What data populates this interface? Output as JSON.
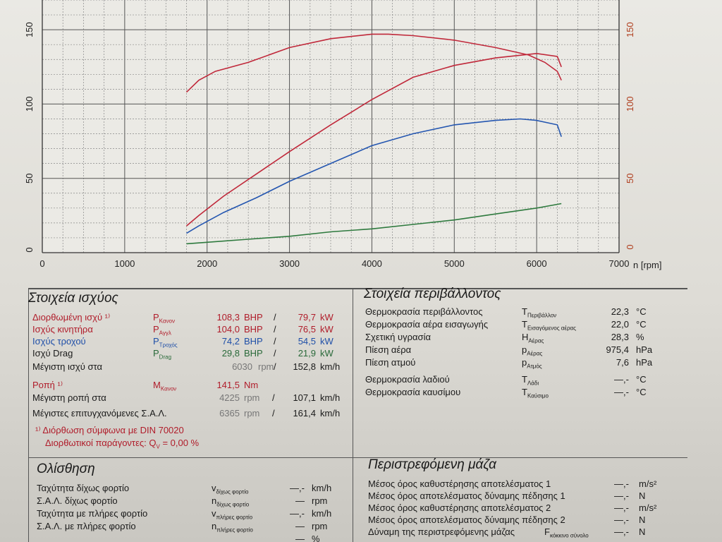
{
  "chart_data": {
    "type": "line",
    "xlabel": "n [rpm]",
    "xlim": [
      0,
      7000
    ],
    "x_ticks": [
      0,
      1000,
      2000,
      3000,
      4000,
      5000,
      6000,
      7000
    ],
    "ylim_left": [
      0,
      160
    ],
    "y_ticks_left": [
      0,
      50,
      100,
      150
    ],
    "ylim_right": [
      0,
      160
    ],
    "y_ticks_right": [
      50,
      100,
      150
    ],
    "grid": true,
    "series": [
      {
        "color": "#c0283a",
        "axis": "left",
        "x": [
          1750,
          1900,
          2200,
          2600,
          3000,
          3500,
          4000,
          4500,
          5000,
          5500,
          6000,
          6250,
          6300
        ],
        "y": [
          18,
          25,
          38,
          53,
          68,
          86,
          103,
          118,
          126,
          131,
          134,
          132,
          125
        ]
      },
      {
        "color": "#2456b0",
        "axis": "left",
        "x": [
          1750,
          1900,
          2200,
          2600,
          3000,
          3500,
          4000,
          4500,
          5000,
          5500,
          5800,
          6000,
          6250,
          6300
        ],
        "y": [
          13,
          18,
          27,
          37,
          48,
          60,
          72,
          80,
          86,
          89,
          90,
          89,
          86,
          78
        ]
      },
      {
        "color": "#2e7a3e",
        "axis": "left",
        "x": [
          1750,
          2000,
          2500,
          3000,
          3500,
          4000,
          4500,
          5000,
          5500,
          6000,
          6300
        ],
        "y": [
          6,
          7,
          9,
          11,
          14,
          16,
          19,
          22,
          26,
          30,
          33
        ]
      },
      {
        "color": "#c0283a",
        "axis": "right",
        "x": [
          1750,
          1900,
          2100,
          2500,
          3000,
          3500,
          4000,
          4200,
          4500,
          5000,
          5500,
          5900,
          6100,
          6250,
          6300
        ],
        "y": [
          108,
          116,
          122,
          128,
          138,
          144,
          147,
          147,
          146,
          143,
          138,
          133,
          128,
          122,
          116
        ]
      }
    ]
  },
  "power": {
    "title": "Στοιχεία ισχύος",
    "rows": [
      {
        "label": "Διορθωμένη ισχύ ¹⁾",
        "sym": "P",
        "sub": "Κανον",
        "v1": "108,3",
        "u1": "BHP",
        "sep": "/",
        "v2": "79,7",
        "u2": "kW"
      },
      {
        "label": "Ισχύς κινητήρα",
        "sym": "P",
        "sub": "Αγγλ",
        "v1": "104,0",
        "u1": "BHP",
        "sep": "/",
        "v2": "76,5",
        "u2": "kW"
      },
      {
        "label": "Ισχύς τροχού",
        "sym": "P",
        "sub": "Τροχός",
        "v1": "74,2",
        "u1": "BHP",
        "sep": "/",
        "v2": "54,5",
        "u2": "kW"
      },
      {
        "label": "Ισχύ Drag",
        "sym": "P",
        "sub": "Drag",
        "v1": "29,8",
        "u1": "BHP",
        "sep": "/",
        "v2": "21,9",
        "u2": "kW"
      }
    ],
    "max_power_label": "Μέγιστη ισχύ στα",
    "max_power_rpm": "6030",
    "rpm_unit": "rpm",
    "max_power_speed": "152,8",
    "speed_unit": "km/h",
    "slash": "/",
    "torque_label": "Ροπή ¹⁾",
    "torque_sym": "M",
    "torque_sub": "Κανον",
    "torque_value": "141,5",
    "torque_unit": "Nm",
    "max_torque_label": "Μέγιστη ροπή στα",
    "max_torque_rpm": "4225",
    "max_torque_speed": "107,1",
    "max_rpm_label": "Μέγιστες επιτυγχανόμενες Σ.Α.Λ.",
    "max_rpm": "6365",
    "max_rpm_speed": "161,4",
    "footnote1": "¹⁾ Διόρθωση σύμφωνα με DIN 70020",
    "footnote2_label": "Διορθωτικοί παράγοντες: Q",
    "footnote2_sub": "V",
    "footnote2_value": "=   0,00 %"
  },
  "environment": {
    "title": "Στοιχεία περιβάλλοντος",
    "rows": [
      {
        "label": "Θερμοκρασία περιβάλλοντος",
        "sym": "T",
        "sub": "Περιβάλλον",
        "value": "22,3",
        "unit": "°C"
      },
      {
        "label": "Θερμοκρασία αέρα εισαγωγής",
        "sym": "T",
        "sub": "Εισαγόμενος αέρας",
        "value": "22,0",
        "unit": "°C"
      },
      {
        "label": "Σχετική υγρασία",
        "sym": "H",
        "sub": "Αέρας",
        "value": "28,3",
        "unit": "%"
      },
      {
        "label": "Πίεση αέρα",
        "sym": "p",
        "sub": "Αέρας",
        "value": "975,4",
        "unit": "hPa"
      },
      {
        "label": "Πίεση ατμού",
        "sym": "p",
        "sub": "Ατμός",
        "value": "7,6",
        "unit": "hPa"
      },
      {
        "label": "Θερμοκρασία λαδιού",
        "sym": "T",
        "sub": "Λάδι",
        "value": "—,-",
        "unit": "°C"
      },
      {
        "label": "Θερμοκρασία καυσίμου",
        "sym": "T",
        "sub": "Καύσιμο",
        "value": "—,-",
        "unit": "°C"
      }
    ]
  },
  "slip": {
    "title": "Ολίσθηση",
    "rows": [
      {
        "label": "Ταχύτητα δίχως φορτίο",
        "sym": "v",
        "sub": "δίχως φορτίο",
        "value": "—,-",
        "unit": "km/h"
      },
      {
        "label": "Σ.Α.Λ. δίχως φορτίο",
        "sym": "n",
        "sub": "δίχως φορτίο",
        "value": "—",
        "unit": "rpm"
      },
      {
        "label": "Ταχύτητα με πλήρες φορτίο",
        "sym": "v",
        "sub": "πλήρες φορτίο",
        "value": "—,-",
        "unit": "km/h"
      },
      {
        "label": "Σ.Α.Λ. με πλήρες φορτίο",
        "sym": "n",
        "sub": "πλήρες φορτίο",
        "value": "—",
        "unit": "rpm"
      },
      {
        "label": "",
        "sym": "",
        "sub": "",
        "value": "—",
        "unit": "%"
      }
    ]
  },
  "rotating": {
    "title": "Περιστρεφόμενη μάζα",
    "rows": [
      {
        "label": "Μέσος όρος καθυστέρησης αποτελέσματος 1",
        "value": "—,-",
        "unit": "m/s²"
      },
      {
        "label": "Μέσος όρος αποτελέσματος δύναμης πέδησης 1",
        "value": "—,-",
        "unit": "N"
      },
      {
        "label": "Μέσος όρος καθυστέρησης αποτελέσματος 2",
        "value": "—,-",
        "unit": "m/s²"
      },
      {
        "label": "Μέσος όρος αποτελέσματος δύναμης πέδησης 2",
        "value": "—,-",
        "unit": "N"
      },
      {
        "label": "Δύναμη της περιστρεφόμενης μάζας",
        "sym": "F",
        "sub": "κόκκινο σύνολο",
        "value": "—,-",
        "unit": "N"
      }
    ]
  }
}
